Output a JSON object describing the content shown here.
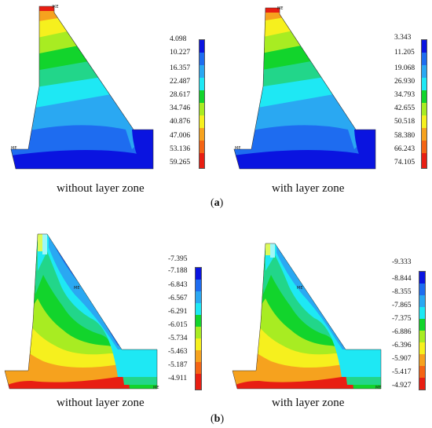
{
  "palette": {
    "dark_blue": "#0a14e0",
    "blue": "#1e6cf0",
    "sky": "#2aa8f2",
    "cyan": "#1ee8f4",
    "teal_green": "#22d68a",
    "green": "#12d42c",
    "yellow_green": "#a8ec22",
    "yellow": "#f6f01e",
    "orange": "#f6a21e",
    "orange_red": "#f46414",
    "red": "#e81e12"
  },
  "panels": {
    "a": {
      "label": "a",
      "left": {
        "caption": "without layer zone",
        "legend_values": [
          "4.098",
          "10.227",
          "16.357",
          "22.487",
          "28.617",
          "34.746",
          "40.876",
          "47.006",
          "53.136",
          "59.265"
        ],
        "node_labels": [
          "ЖЕ",
          "МЕ"
        ]
      },
      "right": {
        "caption": "with layer zone",
        "legend_values": [
          "3.343",
          "11.205",
          "19.068",
          "26.930",
          "34.793",
          "42.655",
          "50.518",
          "58.380",
          "66.243",
          "74.105"
        ],
        "node_labels": [
          "МЕ",
          "МЕ"
        ]
      }
    },
    "b": {
      "label": "b",
      "left": {
        "caption": "without layer zone",
        "legend_values": [
          "-7.395",
          "-7.188",
          "-6.843",
          "-6.567",
          "-6.291",
          "-6.015",
          "-5.734",
          "-5.463",
          "-5.187",
          "-4.911"
        ],
        "node_labels": [
          "МЕ",
          "МЕ"
        ]
      },
      "right": {
        "caption": "with layer zone",
        "legend_values": [
          "-9.333",
          "-8.844",
          "-8.355",
          "-7.865",
          "-7.375",
          "-6.886",
          "-6.396",
          "-5.907",
          "-5.417",
          "-4.927"
        ],
        "node_labels": [
          "МЕ",
          "МЕ"
        ]
      }
    }
  }
}
